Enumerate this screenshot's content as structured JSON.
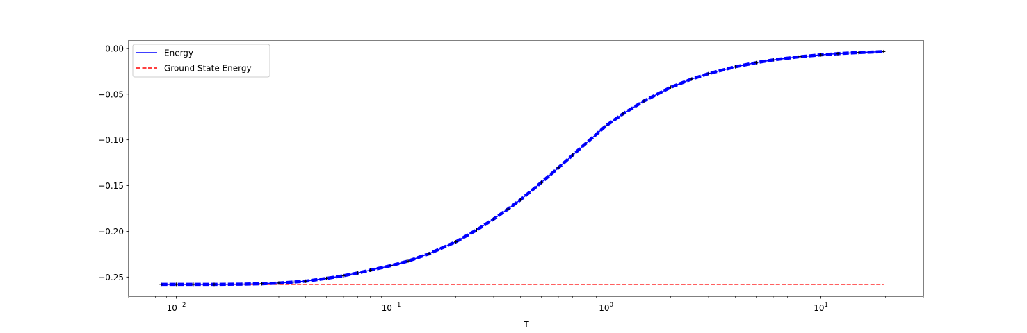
{
  "chart_data": {
    "type": "line",
    "title": "",
    "xlabel": "T",
    "ylabel": "",
    "xscale": "log",
    "xlim": [
      0.006,
      30
    ],
    "ylim": [
      -0.271,
      0.009
    ],
    "grid": false,
    "legend_position": "top-left",
    "x_ticks": [
      {
        "value": 0.01,
        "base": "10",
        "exp": "−2"
      },
      {
        "value": 0.1,
        "base": "10",
        "exp": "−1"
      },
      {
        "value": 1,
        "base": "10",
        "exp": "0"
      },
      {
        "value": 10,
        "base": "10",
        "exp": "1"
      }
    ],
    "y_ticks": [
      {
        "value": 0.0,
        "label": "0.00"
      },
      {
        "value": -0.05,
        "label": "−0.05"
      },
      {
        "value": -0.1,
        "label": "−0.10"
      },
      {
        "value": -0.15,
        "label": "−0.15"
      },
      {
        "value": -0.2,
        "label": "−0.20"
      },
      {
        "value": -0.25,
        "label": "−0.25"
      }
    ],
    "series": [
      {
        "name": "Energy",
        "color": "#0000ff",
        "style": "solid-with-markers",
        "x": [
          0.0085,
          0.01,
          0.012,
          0.015,
          0.02,
          0.025,
          0.03,
          0.035,
          0.04,
          0.05,
          0.06,
          0.07,
          0.08,
          0.1,
          0.12,
          0.15,
          0.2,
          0.25,
          0.3,
          0.35,
          0.4,
          0.5,
          0.6,
          0.7,
          0.8,
          1.0,
          1.2,
          1.5,
          2.0,
          2.5,
          3.0,
          4.0,
          5.0,
          6.0,
          8.0,
          10.0,
          12.0,
          15.0,
          19.6
        ],
        "y": [
          -0.258,
          -0.258,
          -0.258,
          -0.258,
          -0.2578,
          -0.2573,
          -0.2565,
          -0.2555,
          -0.2545,
          -0.2515,
          -0.2485,
          -0.2455,
          -0.2425,
          -0.2375,
          -0.2325,
          -0.2245,
          -0.2115,
          -0.1985,
          -0.1865,
          -0.1755,
          -0.1655,
          -0.1465,
          -0.1305,
          -0.1165,
          -0.1045,
          -0.0845,
          -0.0715,
          -0.0575,
          -0.0425,
          -0.0335,
          -0.0275,
          -0.02,
          -0.0155,
          -0.0125,
          -0.009,
          -0.007,
          -0.0057,
          -0.0045,
          -0.0035
        ]
      },
      {
        "name": "Ground State Energy",
        "color": "#ff0000",
        "style": "dashed",
        "x": [
          0.0085,
          19.6
        ],
        "y": [
          -0.258,
          -0.258
        ]
      }
    ]
  }
}
